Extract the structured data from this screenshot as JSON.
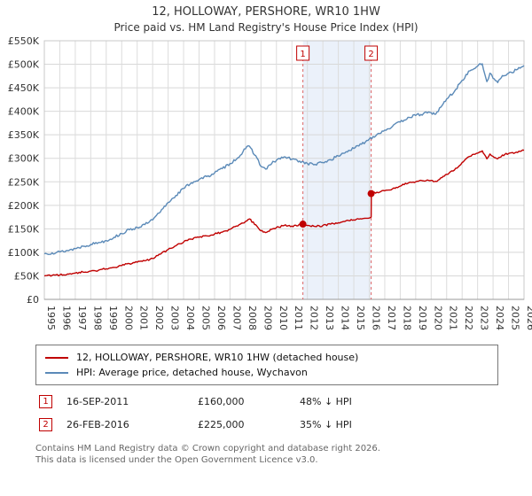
{
  "title": "12, HOLLOWAY, PERSHORE, WR10 1HW",
  "subtitle": "Price paid vs. HM Land Registry's House Price Index (HPI)",
  "chart_data": {
    "type": "line",
    "x_range": [
      1995,
      2026
    ],
    "y_range": [
      0,
      550000
    ],
    "grid": true,
    "x_ticks": [
      1995,
      1996,
      1997,
      1998,
      1999,
      2000,
      2001,
      2002,
      2003,
      2004,
      2005,
      2006,
      2007,
      2008,
      2009,
      2010,
      2011,
      2012,
      2013,
      2014,
      2015,
      2016,
      2017,
      2018,
      2019,
      2020,
      2021,
      2022,
      2023,
      2024,
      2025,
      2026
    ],
    "y_ticks": [
      {
        "value": 0,
        "label": "£0"
      },
      {
        "value": 50000,
        "label": "£50K"
      },
      {
        "value": 100000,
        "label": "£100K"
      },
      {
        "value": 150000,
        "label": "£150K"
      },
      {
        "value": 200000,
        "label": "£200K"
      },
      {
        "value": 250000,
        "label": "£250K"
      },
      {
        "value": 300000,
        "label": "£300K"
      },
      {
        "value": 350000,
        "label": "£350K"
      },
      {
        "value": 400000,
        "label": "£400K"
      },
      {
        "value": 450000,
        "label": "£450K"
      },
      {
        "value": 500000,
        "label": "£500K"
      },
      {
        "value": 550000,
        "label": "£550K"
      }
    ],
    "shaded_region": {
      "from": 2011.71,
      "to": 2016.12,
      "color": "#dde7f7"
    },
    "markers": [
      {
        "label": "1",
        "x": 2011.71,
        "y": 160000
      },
      {
        "label": "2",
        "x": 2016.12,
        "y": 225000
      }
    ],
    "series": [
      {
        "name": "HPI: Average price, detached house, Wychavon",
        "color": "#5b8ab8",
        "noise": 3000,
        "points": [
          [
            1995,
            97000
          ],
          [
            1995.5,
            99000
          ],
          [
            1996,
            101000
          ],
          [
            1996.5,
            104000
          ],
          [
            1997,
            108000
          ],
          [
            1997.5,
            113000
          ],
          [
            1998,
            117000
          ],
          [
            1998.5,
            121000
          ],
          [
            1999,
            125000
          ],
          [
            1999.5,
            132000
          ],
          [
            2000,
            140000
          ],
          [
            2000.5,
            148000
          ],
          [
            2001,
            153000
          ],
          [
            2001.5,
            159000
          ],
          [
            2002,
            169000
          ],
          [
            2002.5,
            186000
          ],
          [
            2003,
            206000
          ],
          [
            2003.5,
            221000
          ],
          [
            2004,
            236000
          ],
          [
            2004.5,
            248000
          ],
          [
            2005,
            255000
          ],
          [
            2005.5,
            261000
          ],
          [
            2006,
            269000
          ],
          [
            2006.5,
            278000
          ],
          [
            2007,
            289000
          ],
          [
            2007.5,
            301000
          ],
          [
            2008,
            320000
          ],
          [
            2008.25,
            326000
          ],
          [
            2008.75,
            300000
          ],
          [
            2009,
            283000
          ],
          [
            2009.3,
            277000
          ],
          [
            2009.7,
            289000
          ],
          [
            2010,
            296000
          ],
          [
            2010.5,
            303000
          ],
          [
            2011,
            298000
          ],
          [
            2011.5,
            294000
          ],
          [
            2012,
            289000
          ],
          [
            2012.5,
            287000
          ],
          [
            2013,
            291000
          ],
          [
            2013.5,
            297000
          ],
          [
            2014,
            305000
          ],
          [
            2014.5,
            314000
          ],
          [
            2015,
            321000
          ],
          [
            2015.5,
            330000
          ],
          [
            2016,
            341000
          ],
          [
            2016.5,
            351000
          ],
          [
            2017,
            360000
          ],
          [
            2017.5,
            368000
          ],
          [
            2018,
            377000
          ],
          [
            2018.5,
            387000
          ],
          [
            2019,
            391000
          ],
          [
            2019.5,
            395000
          ],
          [
            2020,
            397000
          ],
          [
            2020.3,
            394000
          ],
          [
            2020.7,
            412000
          ],
          [
            2021,
            426000
          ],
          [
            2021.5,
            442000
          ],
          [
            2022,
            466000
          ],
          [
            2022.5,
            486000
          ],
          [
            2023,
            496000
          ],
          [
            2023.3,
            501000
          ],
          [
            2023.6,
            463000
          ],
          [
            2023.8,
            481000
          ],
          [
            2024,
            470000
          ],
          [
            2024.3,
            461000
          ],
          [
            2024.6,
            476000
          ],
          [
            2025,
            481000
          ],
          [
            2025.5,
            488000
          ],
          [
            2026,
            497000
          ]
        ]
      },
      {
        "name": "12, HOLLOWAY, PERSHORE, WR10 1HW (detached house)",
        "color": "#c00000",
        "noise": 1900,
        "points": [
          [
            1995,
            50000
          ],
          [
            1995.5,
            51000
          ],
          [
            1996,
            52000
          ],
          [
            1996.5,
            54000
          ],
          [
            1997,
            56000
          ],
          [
            1997.5,
            58000
          ],
          [
            1998,
            60000
          ],
          [
            1998.5,
            62000
          ],
          [
            1999,
            65000
          ],
          [
            1999.5,
            68000
          ],
          [
            2000,
            72000
          ],
          [
            2000.5,
            76000
          ],
          [
            2001,
            79000
          ],
          [
            2001.5,
            82000
          ],
          [
            2002,
            87000
          ],
          [
            2002.5,
            96000
          ],
          [
            2003,
            106000
          ],
          [
            2003.5,
            114000
          ],
          [
            2004,
            122000
          ],
          [
            2004.5,
            128000
          ],
          [
            2005,
            132000
          ],
          [
            2005.5,
            135000
          ],
          [
            2006,
            139000
          ],
          [
            2006.5,
            143000
          ],
          [
            2007,
            149000
          ],
          [
            2007.5,
            156000
          ],
          [
            2008,
            166000
          ],
          [
            2008.25,
            171000
          ],
          [
            2008.75,
            155000
          ],
          [
            2009,
            146000
          ],
          [
            2009.3,
            142000
          ],
          [
            2009.7,
            149000
          ],
          [
            2010,
            153000
          ],
          [
            2010.5,
            157000
          ],
          [
            2011,
            156000
          ],
          [
            2011.71,
            160000
          ],
          [
            2012,
            157000
          ],
          [
            2012.5,
            155000
          ],
          [
            2013,
            157000
          ],
          [
            2013.5,
            160000
          ],
          [
            2014,
            163000
          ],
          [
            2014.5,
            167000
          ],
          [
            2015,
            169000
          ],
          [
            2015.5,
            171000
          ],
          [
            2016,
            173000
          ],
          [
            2016.12,
            175000
          ],
          [
            2016.13,
            225000
          ],
          [
            2016.5,
            228000
          ],
          [
            2017,
            231000
          ],
          [
            2017.5,
            235000
          ],
          [
            2018,
            241000
          ],
          [
            2018.5,
            247000
          ],
          [
            2019,
            250000
          ],
          [
            2019.5,
            252000
          ],
          [
            2020,
            253000
          ],
          [
            2020.3,
            251000
          ],
          [
            2020.7,
            259000
          ],
          [
            2021,
            266000
          ],
          [
            2021.5,
            275000
          ],
          [
            2022,
            291000
          ],
          [
            2022.5,
            304000
          ],
          [
            2023,
            311000
          ],
          [
            2023.3,
            316000
          ],
          [
            2023.6,
            299000
          ],
          [
            2023.8,
            309000
          ],
          [
            2024,
            304000
          ],
          [
            2024.3,
            299000
          ],
          [
            2024.6,
            307000
          ],
          [
            2025,
            310000
          ],
          [
            2025.5,
            313000
          ],
          [
            2026,
            317000
          ]
        ]
      }
    ]
  },
  "legend": {
    "items": [
      {
        "label": "12, HOLLOWAY, PERSHORE, WR10 1HW (detached house)",
        "color": "#c00000"
      },
      {
        "label": "HPI: Average price, detached house, Wychavon",
        "color": "#5b8ab8"
      }
    ]
  },
  "annotations": [
    {
      "num": "1",
      "date": "16-SEP-2011",
      "price": "£160,000",
      "hpi": "48% ↓ HPI"
    },
    {
      "num": "2",
      "date": "26-FEB-2016",
      "price": "£225,000",
      "hpi": "35% ↓ HPI"
    }
  ],
  "footer": {
    "line1": "Contains HM Land Registry data © Crown copyright and database right 2026.",
    "line2": "This data is licensed under the Open Government Licence v3.0."
  }
}
